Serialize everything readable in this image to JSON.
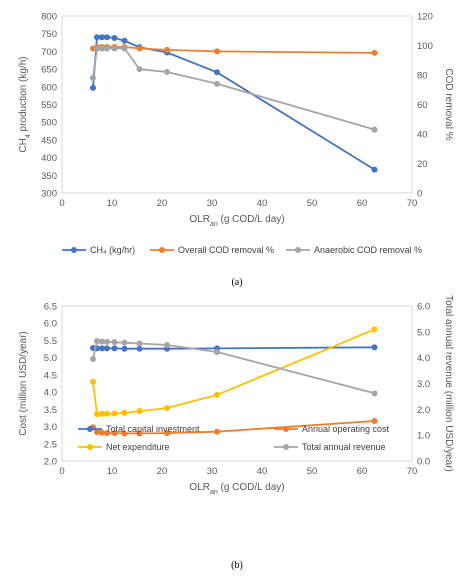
{
  "chart_data": [
    {
      "panel_label": "(a)",
      "type": "line",
      "xlabel": "OLR",
      "xlabel_sub": "an",
      "xlabel_suffix": " (g COD/L day)",
      "ylabel_left": "CH",
      "ylabel_left_sub": "4",
      "ylabel_left_suffix": " production (kg/h)",
      "ylabel_right": "COD removal %",
      "xlim": [
        0,
        70
      ],
      "xticks": [
        0,
        10,
        20,
        30,
        40,
        50,
        60,
        70
      ],
      "ylim_left": [
        300,
        800
      ],
      "yticks_left": [
        300,
        350,
        400,
        450,
        500,
        550,
        600,
        650,
        700,
        750,
        800
      ],
      "ylim_right": [
        0,
        120
      ],
      "yticks_right": [
        0,
        20,
        40,
        60,
        80,
        100,
        120
      ],
      "grid": false,
      "legend_position": "bottom",
      "series": [
        {
          "name": "CH₄ (kg/hr)",
          "axis": "left",
          "color": "#4472c4",
          "x": [
            6.2,
            7.0,
            8.0,
            9.0,
            10.5,
            12.5,
            15.5,
            21.0,
            31.0,
            62.5
          ],
          "y": [
            597,
            740,
            740,
            740,
            738,
            730,
            712,
            697,
            641,
            366
          ]
        },
        {
          "name": "Overall COD removal %",
          "axis": "right",
          "color": "#ed7d31",
          "x": [
            6.2,
            7.0,
            8.0,
            9.0,
            10.5,
            12.5,
            15.5,
            21.0,
            31.0,
            62.5
          ],
          "y": [
            98,
            99,
            99,
            99,
            99,
            99,
            98,
            97,
            96,
            95
          ]
        },
        {
          "name": "Anaerobic COD removal %",
          "axis": "right",
          "color": "#a5a5a5",
          "x": [
            6.2,
            7.0,
            8.0,
            9.0,
            10.5,
            12.5,
            15.5,
            21.0,
            31.0,
            62.5
          ],
          "y": [
            78,
            98,
            98,
            98,
            98,
            98,
            84,
            82,
            74,
            43
          ]
        }
      ]
    },
    {
      "panel_label": "(b)",
      "type": "line",
      "xlabel": "OLR",
      "xlabel_sub": "an",
      "xlabel_suffix": " (g COD/L day)",
      "ylabel_left": "Cost (million USD/year)",
      "ylabel_right": "Total annual revenue (million USD/year)",
      "xlim": [
        0,
        70
      ],
      "xticks": [
        0,
        10,
        20,
        30,
        40,
        50,
        60,
        70
      ],
      "ylim_left": [
        2.0,
        6.5
      ],
      "yticks_left": [
        "2.0",
        "2.5",
        "3.0",
        "3.5",
        "4.0",
        "4.5",
        "5.0",
        "5.5",
        "6.0",
        "6.5"
      ],
      "ylim_right": [
        0,
        6
      ],
      "yticks_right": [
        "0.0",
        "1.0",
        "2.0",
        "3.0",
        "4.0",
        "5.0",
        "6.0"
      ],
      "grid": false,
      "legend_position": "bottom",
      "series": [
        {
          "name": "Total capital investment",
          "axis": "left",
          "color": "#4472c4",
          "x": [
            6.2,
            7.0,
            8.0,
            9.0,
            10.5,
            12.5,
            15.5,
            21.0,
            31.0,
            62.5
          ],
          "y": [
            5.28,
            5.27,
            5.27,
            5.27,
            5.27,
            5.26,
            5.26,
            5.26,
            5.27,
            5.3
          ]
        },
        {
          "name": "Annual operating cost",
          "axis": "left",
          "color": "#ed7d31",
          "x": [
            6.2,
            7.0,
            8.0,
            9.0,
            10.5,
            12.5,
            15.5,
            21.0,
            31.0,
            62.5
          ],
          "y": [
            2.98,
            2.84,
            2.82,
            2.81,
            2.81,
            2.8,
            2.8,
            2.81,
            2.85,
            3.16
          ]
        },
        {
          "name": "Net expenditure",
          "axis": "left",
          "color": "#ffc000",
          "x": [
            6.2,
            7.0,
            8.0,
            9.0,
            10.5,
            12.5,
            15.5,
            21.0,
            31.0,
            62.5
          ],
          "y": [
            4.3,
            3.36,
            3.37,
            3.37,
            3.38,
            3.4,
            3.45,
            3.54,
            3.92,
            5.82
          ]
        },
        {
          "name": "Total annual revenue",
          "axis": "right",
          "color": "#a5a5a5",
          "x": [
            6.2,
            7.0,
            8.0,
            9.0,
            10.5,
            12.5,
            15.5,
            21.0,
            31.0,
            62.5
          ],
          "y": [
            3.95,
            4.64,
            4.62,
            4.61,
            4.6,
            4.58,
            4.55,
            4.49,
            4.22,
            2.62
          ]
        }
      ]
    }
  ]
}
